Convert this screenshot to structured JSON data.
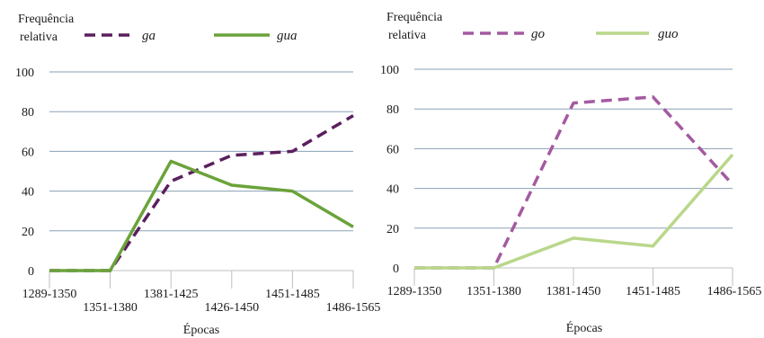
{
  "chart_data": [
    {
      "type": "line",
      "ylabel": "Frequência relativa",
      "ylabel_lines": [
        "Frequência",
        "relativa"
      ],
      "xlabel": "Épocas",
      "categories": [
        "1289-1350",
        "1351-1380",
        "1381-1425",
        "1426-1450",
        "1451-1485",
        "1486-1565"
      ],
      "ylim": [
        0,
        100
      ],
      "yticks": [
        0,
        20,
        40,
        60,
        80,
        100
      ],
      "grid": true,
      "legend": "top",
      "series": [
        {
          "name": "ga",
          "style": "dashed",
          "color": "#5b1f5e",
          "values": [
            0,
            0,
            45,
            58,
            60,
            78
          ]
        },
        {
          "name": "gua",
          "style": "solid",
          "color": "#6aa33a",
          "values": [
            0,
            0,
            55,
            43,
            40,
            22
          ]
        }
      ]
    },
    {
      "type": "line",
      "ylabel": "Frequência relativa",
      "ylabel_lines": [
        "Frequência",
        "relativa"
      ],
      "xlabel": "Épocas",
      "categories": [
        "1289-1350",
        "1351-1380",
        "1381-1450",
        "1451-1485",
        "1486-1565"
      ],
      "ylim": [
        0,
        100
      ],
      "yticks": [
        0,
        20,
        40,
        60,
        80,
        100
      ],
      "grid": true,
      "legend": "top",
      "series": [
        {
          "name": "go",
          "style": "dashed",
          "color": "#a45aa0",
          "values": [
            0,
            0,
            83,
            86,
            42
          ]
        },
        {
          "name": "guo",
          "style": "solid",
          "color": "#b9d78a",
          "values": [
            0,
            0,
            15,
            11,
            57
          ]
        }
      ]
    }
  ]
}
